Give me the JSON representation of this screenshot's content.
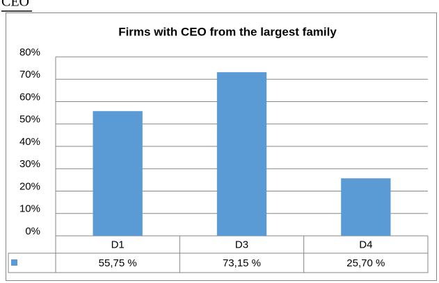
{
  "heading": "CEO",
  "chart_data": {
    "type": "bar",
    "title": "Firms with CEO from the largest family",
    "categories": [
      "D1",
      "D3",
      "D4"
    ],
    "values": [
      55.75,
      73.15,
      25.7
    ],
    "value_labels": [
      "55,75 %",
      "73,15 %",
      "25,70 %"
    ],
    "color": "#5b9bd5",
    "ylim": [
      0,
      80
    ],
    "yticks": [
      {
        "value": 0,
        "label": "0%"
      },
      {
        "value": 10,
        "label": "10%"
      },
      {
        "value": 20,
        "label": "20%"
      },
      {
        "value": 30,
        "label": "30%"
      },
      {
        "value": 40,
        "label": "40%"
      },
      {
        "value": 50,
        "label": "50%"
      },
      {
        "value": 60,
        "label": "60%"
      },
      {
        "value": 70,
        "label": "70%"
      },
      {
        "value": 80,
        "label": "80%"
      }
    ],
    "grid": true
  }
}
